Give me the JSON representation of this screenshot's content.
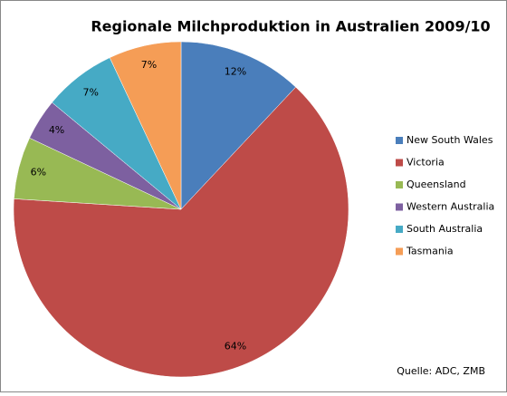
{
  "chart_data": {
    "type": "pie",
    "title": "Regionale Milchproduktion in Australien 2009/10",
    "categories": [
      "New South Wales",
      "Victoria",
      "Queensland",
      "Western Australia",
      "South Australia",
      "Tasmania"
    ],
    "values": [
      12,
      64,
      6,
      4,
      7,
      7
    ],
    "value_labels": [
      "12%",
      "64%",
      "6%",
      "4%",
      "7%",
      "7%"
    ],
    "colors": [
      "#4a7ebb",
      "#be4b48",
      "#98b954",
      "#7d60a0",
      "#46aac5",
      "#f59d56"
    ],
    "legend": "right",
    "source": "Quelle: ADC, ZMB"
  }
}
